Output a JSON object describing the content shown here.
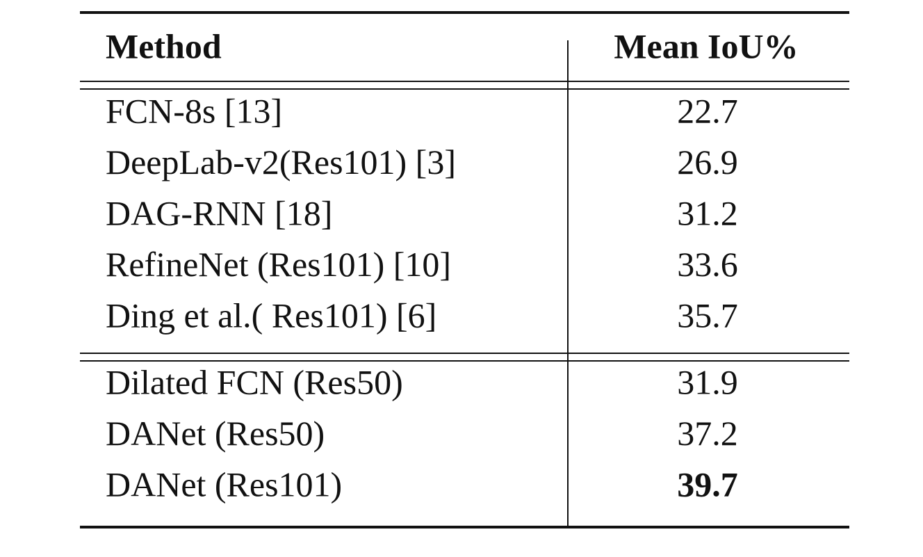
{
  "table": {
    "header": [
      "Method",
      "Mean IoU%"
    ],
    "groups": [
      [
        [
          "FCN-8s [13]",
          "22.7"
        ],
        [
          "DeepLab-v2(Res101) [3]",
          "26.9"
        ],
        [
          "DAG-RNN [18]",
          "31.2"
        ],
        [
          "RefineNet (Res101) [10]",
          "33.6"
        ],
        [
          "Ding et al.( Res101) [6]",
          "35.7"
        ]
      ],
      [
        [
          "Dilated FCN (Res50)",
          "31.9"
        ],
        [
          "DANet (Res50)",
          "37.2"
        ],
        [
          "DANet (Res101)",
          "39.7"
        ]
      ]
    ]
  }
}
